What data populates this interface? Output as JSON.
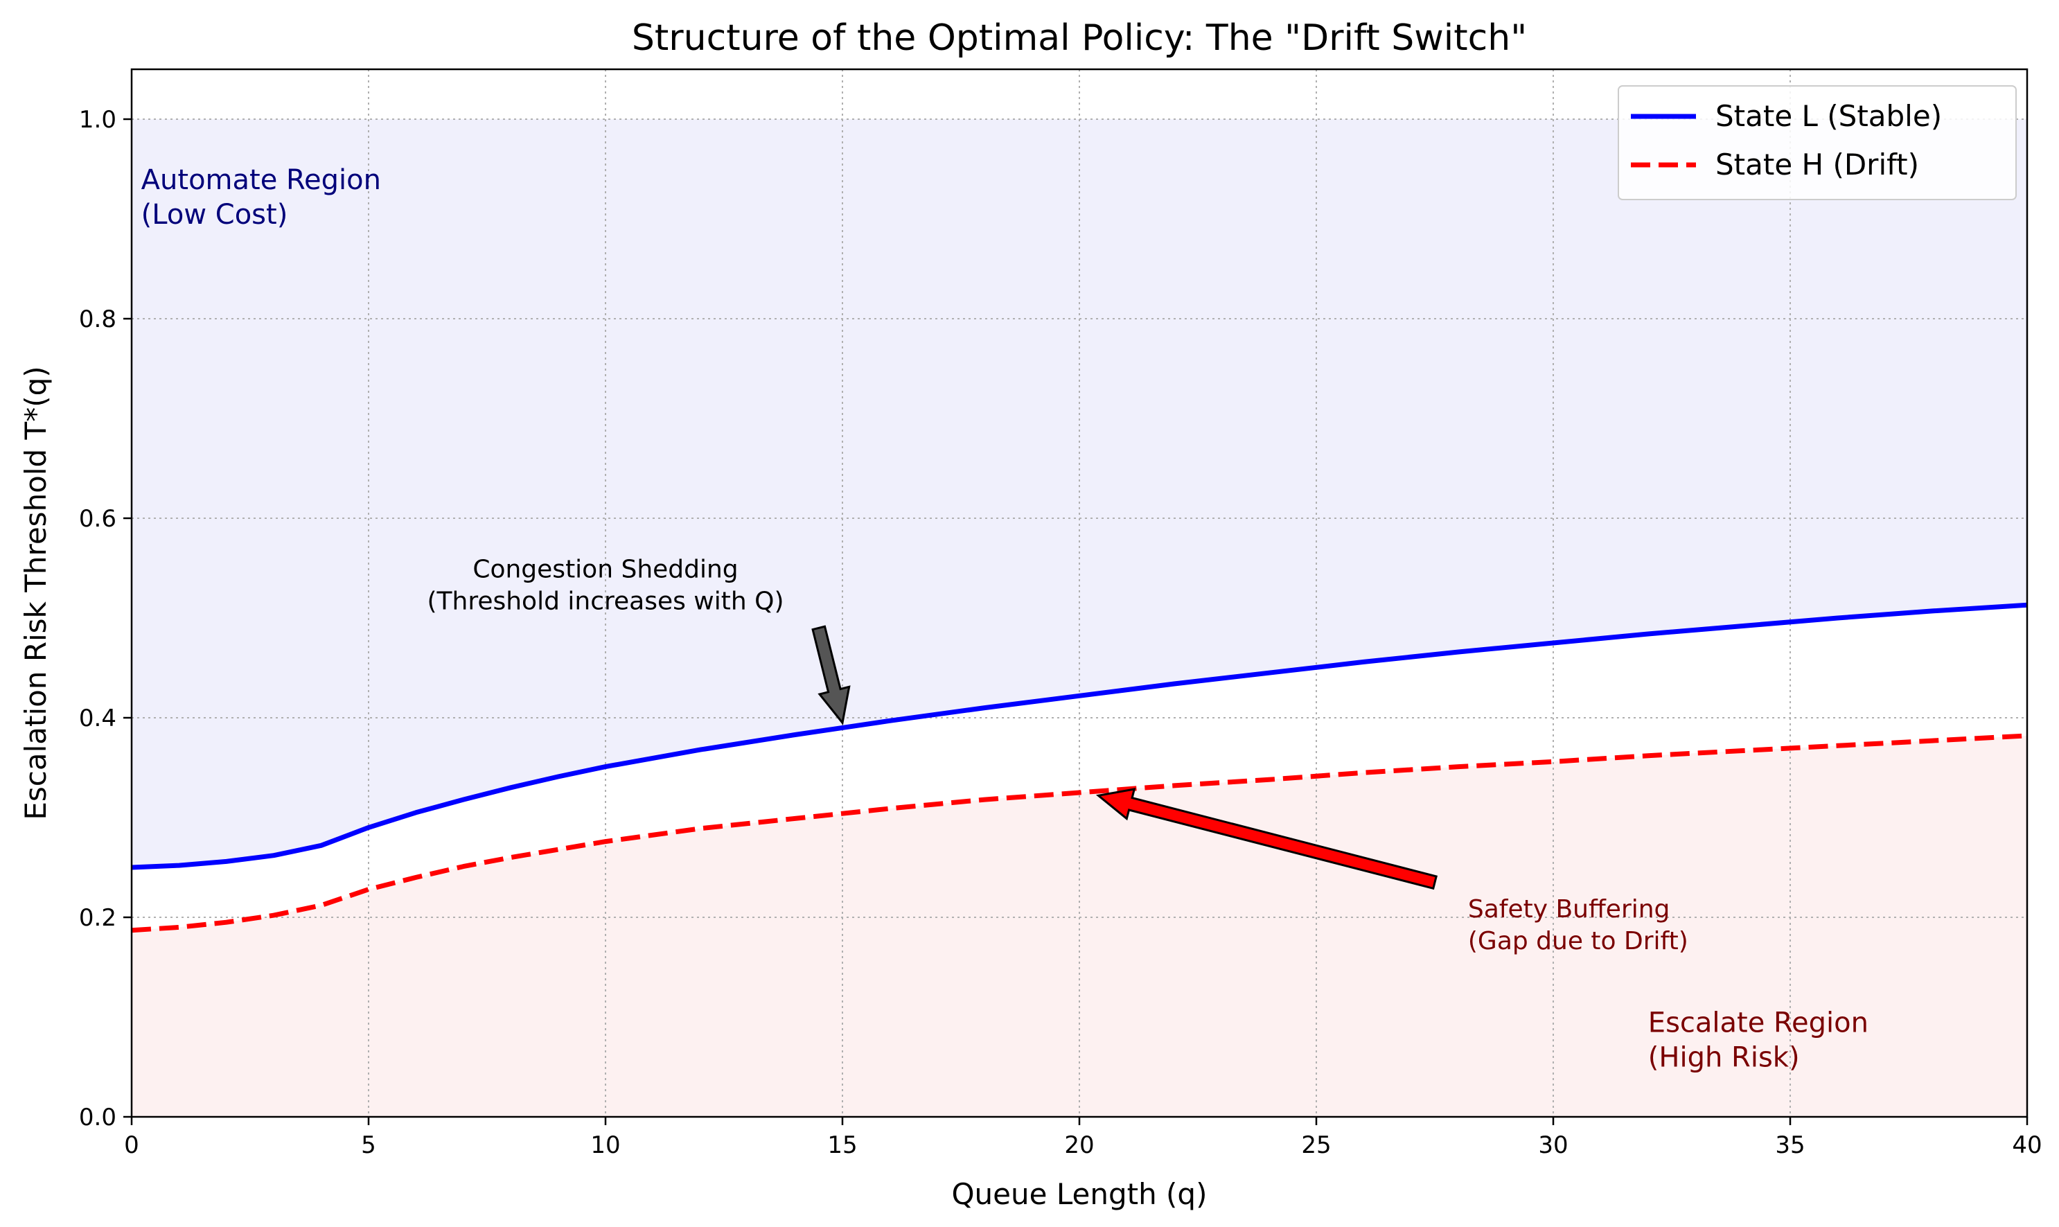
{
  "chart_data": {
    "type": "line",
    "title": "Structure of the Optimal Policy: The \"Drift Switch\"",
    "xlabel": "Queue Length (q)",
    "ylabel": "Escalation Risk Threshold T*(q)",
    "xlim": [
      0,
      40
    ],
    "ylim": [
      0,
      1.05
    ],
    "x_ticks": [
      0,
      5,
      10,
      15,
      20,
      25,
      30,
      35,
      40
    ],
    "y_ticks": [
      0.0,
      0.2,
      0.4,
      0.6,
      0.8,
      1.0
    ],
    "x_tick_labels": [
      "0",
      "5",
      "10",
      "15",
      "20",
      "25",
      "30",
      "35",
      "40"
    ],
    "y_tick_labels": [
      "0.0",
      "0.2",
      "0.4",
      "0.6",
      "0.8",
      "1.0"
    ],
    "grid": true,
    "legend_position": "top-right",
    "series": [
      {
        "name": "State L (Stable)",
        "color": "#0000ff",
        "style": "solid",
        "x": [
          0,
          1,
          2,
          3,
          4,
          5,
          6,
          7,
          8,
          9,
          10,
          12,
          14,
          15,
          16,
          18,
          20,
          22,
          24,
          26,
          28,
          30,
          32,
          34,
          36,
          38,
          40
        ],
        "values": [
          0.25,
          0.252,
          0.256,
          0.262,
          0.272,
          0.29,
          0.305,
          0.318,
          0.33,
          0.341,
          0.351,
          0.368,
          0.383,
          0.39,
          0.397,
          0.41,
          0.422,
          0.434,
          0.445,
          0.456,
          0.466,
          0.475,
          0.484,
          0.492,
          0.5,
          0.507,
          0.513
        ]
      },
      {
        "name": "State H (Drift)",
        "color": "#ff0000",
        "style": "dashed",
        "x": [
          0,
          1,
          2,
          3,
          4,
          5,
          6,
          7,
          8,
          9,
          10,
          12,
          14,
          15,
          16,
          18,
          20,
          22,
          24,
          26,
          28,
          30,
          32,
          34,
          36,
          38,
          40
        ],
        "values": [
          0.187,
          0.19,
          0.195,
          0.202,
          0.212,
          0.228,
          0.24,
          0.251,
          0.26,
          0.268,
          0.276,
          0.289,
          0.299,
          0.304,
          0.309,
          0.318,
          0.325,
          0.332,
          0.338,
          0.345,
          0.351,
          0.356,
          0.362,
          0.367,
          0.372,
          0.377,
          0.382
        ]
      }
    ],
    "regions": {
      "upper": {
        "lines": [
          "Automate Region",
          "(Low Cost)"
        ],
        "color": "#f0f0fc",
        "x": 0.2,
        "y": 0.93
      },
      "lower": {
        "lines": [
          "Escalate Region",
          "(High Risk)"
        ],
        "color": "#fdf1f1",
        "x": 32,
        "y": 0.085
      }
    },
    "annotations": [
      {
        "id": "congestion",
        "lines": [
          "Congestion Shedding",
          "(Threshold increases with Q)"
        ],
        "text_x": 10,
        "text_y": 0.535,
        "arrow_from": [
          14.5,
          0.49
        ],
        "arrow_to": [
          15,
          0.395
        ],
        "color": "#000000",
        "arrow_color": "#555555"
      },
      {
        "id": "safety",
        "lines": [
          "Safety Buffering",
          "(Gap due to Drift)"
        ],
        "text_x": 28.2,
        "text_y": 0.2,
        "arrow_from": [
          27.5,
          0.235
        ],
        "arrow_to": [
          20.4,
          0.322
        ],
        "color": "#7a0000",
        "arrow_color": "#ff0000"
      }
    ]
  }
}
